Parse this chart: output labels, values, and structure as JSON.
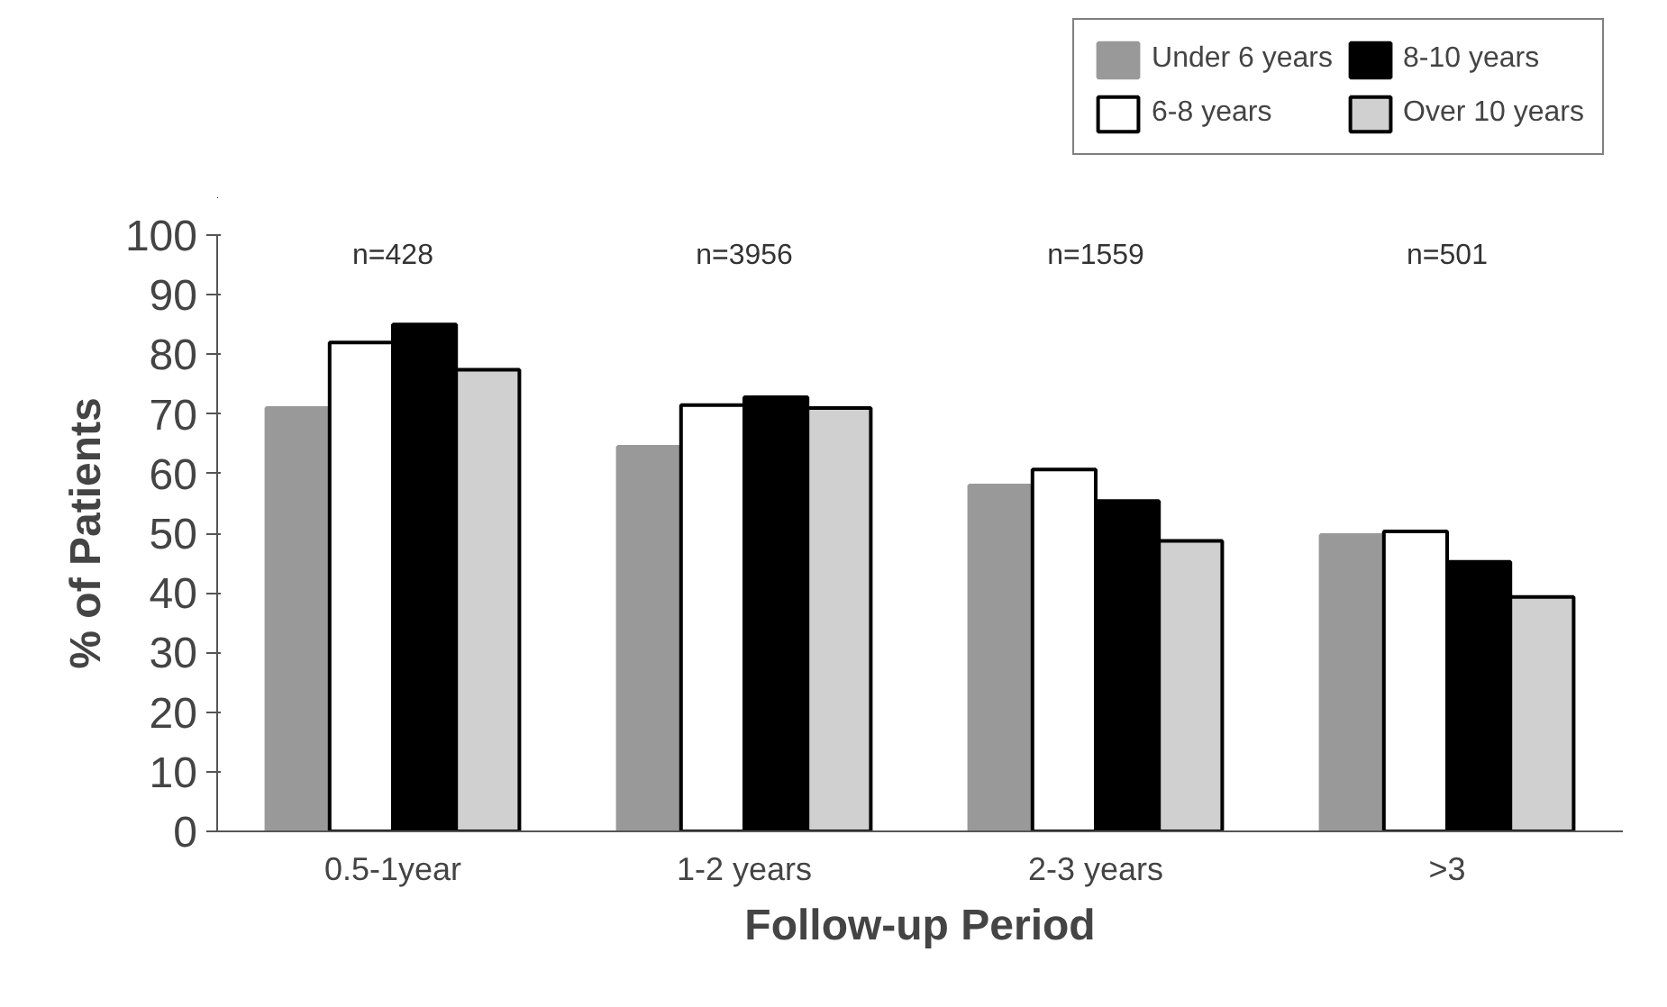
{
  "chart_data": {
    "type": "bar",
    "xlabel": "Follow-up Period",
    "ylabel": "% of Patients",
    "categories": [
      "0.5-1year",
      "1-2 years",
      "2-3 years",
      ">3"
    ],
    "series": [
      {
        "name": "Under 6 years",
        "color": "#999999",
        "values": [
          71,
          64.5,
          58,
          49.7
        ]
      },
      {
        "name": "6-8 years",
        "color": "#ffffff",
        "values": [
          82,
          71.5,
          60.7,
          50.3
        ]
      },
      {
        "name": "8-10 years",
        "color": "#000000",
        "values": [
          85,
          72.8,
          55.4,
          45.2
        ]
      },
      {
        "name": "Over 10 years",
        "color": "#d0d0d0",
        "values": [
          77.4,
          71,
          48.7,
          39.3
        ]
      }
    ],
    "annotations": [
      "n=428",
      "n=3956",
      "n=1559",
      "n=501"
    ],
    "ylim": [
      0,
      100
    ],
    "yticks": [
      0,
      10,
      20,
      30,
      40,
      50,
      60,
      70,
      80,
      90,
      100
    ],
    "grid": false,
    "legend": "top right"
  }
}
